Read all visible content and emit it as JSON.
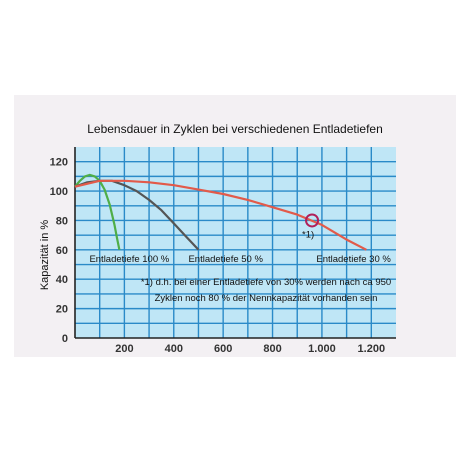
{
  "chart_data": {
    "type": "line",
    "title": "Lebensdauer in Zyklen bei verschiedenen Entladetiefen",
    "xlabel": "",
    "ylabel": "Kapazität in %",
    "xlim": [
      0,
      1300
    ],
    "ylim": [
      0,
      130
    ],
    "x_ticks": [
      200,
      400,
      600,
      800,
      1000,
      1200
    ],
    "x_tick_labels": [
      "200",
      "400",
      "600",
      "800",
      "1.000",
      "1.200"
    ],
    "y_ticks": [
      0,
      20,
      40,
      60,
      80,
      100,
      120
    ],
    "y_tick_labels": [
      "0",
      "20",
      "40",
      "60",
      "80",
      "100",
      "120"
    ],
    "grid": true,
    "colors": {
      "plot_background": "#bfe6f6",
      "grid": "#2a8ac8",
      "axis": "#222222",
      "figure_background": "#f3f0f3"
    },
    "series": [
      {
        "label": "Entladetiefe 100 %",
        "color": "#4fae48",
        "x": [
          0,
          20,
          40,
          60,
          80,
          100,
          120,
          140,
          160,
          170,
          180
        ],
        "y": [
          103,
          107,
          110,
          111,
          110,
          107,
          101,
          91,
          77,
          68,
          60
        ]
      },
      {
        "label": "Entladetiefe 50 %",
        "color": "#555555",
        "x": [
          0,
          50,
          100,
          150,
          200,
          250,
          300,
          350,
          400,
          450,
          500
        ],
        "y": [
          103,
          106,
          107,
          107,
          104,
          100,
          94,
          87,
          78,
          69,
          60
        ]
      },
      {
        "label": "Entladetiefe 30 %",
        "color": "#e25a4a",
        "x": [
          0,
          100,
          200,
          300,
          400,
          500,
          600,
          700,
          800,
          900,
          1000,
          1100,
          1180
        ],
        "y": [
          103,
          107,
          107,
          106,
          104,
          101,
          98,
          94,
          89,
          84,
          77,
          67,
          60
        ]
      }
    ],
    "annotations": {
      "marker": {
        "x": 960,
        "y": 80,
        "label": "*1)",
        "color": "#b0205a"
      },
      "footnote_line1": "*1) d.h. bei einer Entladetiefe von 30% werden nach ca 950",
      "footnote_line2": "Zyklen noch 80 % der Nennkapazität vorhanden sein"
    }
  }
}
